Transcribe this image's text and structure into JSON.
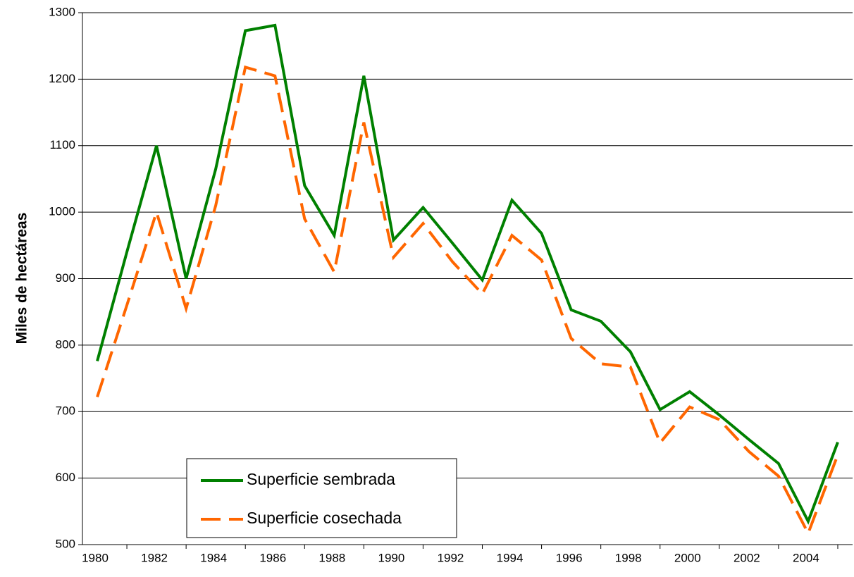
{
  "chart_data": {
    "type": "line",
    "y_label": "Miles de hectáreas",
    "categories": [
      "1980",
      null,
      "1982",
      null,
      "1984",
      null,
      "1986",
      null,
      "1988",
      null,
      "1990",
      null,
      "1992",
      null,
      "1994",
      null,
      "1996",
      null,
      "1998",
      null,
      "2000",
      null,
      "2002",
      null,
      "2004",
      null
    ],
    "series": [
      {
        "name": "Superficie sembrada",
        "color": "#008000",
        "dashed": false,
        "values": [
          776,
          940,
          1100,
          900,
          1065,
          1273,
          1281,
          1040,
          965,
          1205,
          958,
          1007,
          953,
          898,
          1018,
          968,
          853,
          836,
          790,
          703,
          730,
          695,
          658,
          622,
          535,
          654
        ]
      },
      {
        "name": "Superficie cosechada",
        "color": "#ff6600",
        "dashed": true,
        "values": [
          722,
          860,
          1000,
          855,
          1010,
          1218,
          1205,
          990,
          910,
          1135,
          932,
          983,
          925,
          877,
          965,
          928,
          810,
          772,
          767,
          653,
          707,
          688,
          640,
          603,
          517,
          635
        ]
      }
    ],
    "ylim": [
      500,
      1300
    ],
    "yticks": [
      500,
      600,
      700,
      800,
      900,
      1000,
      1100,
      1200,
      1300
    ],
    "grid": true
  }
}
